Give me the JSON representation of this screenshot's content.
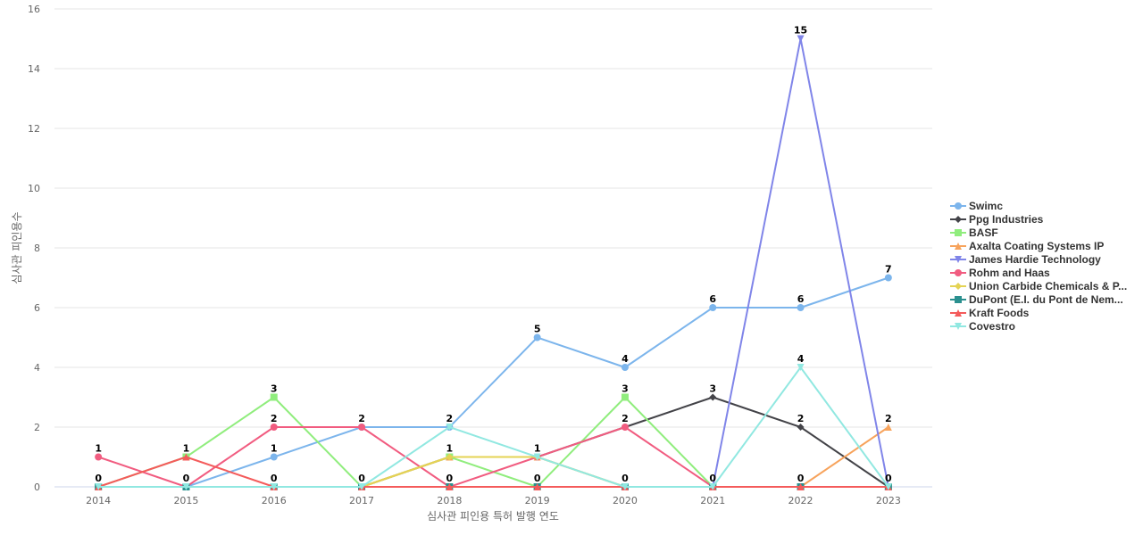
{
  "chart_data": {
    "type": "line",
    "xlabel": "심사관 피인용 특허 발행 연도",
    "ylabel": "심사관 피인용수",
    "categories": [
      "2014",
      "2015",
      "2016",
      "2017",
      "2018",
      "2019",
      "2020",
      "2021",
      "2022",
      "2023"
    ],
    "ylim": [
      0,
      16
    ],
    "yticks": [
      "0",
      "2",
      "4",
      "6",
      "8",
      "10",
      "12",
      "14",
      "16"
    ],
    "grid": true,
    "legend_position": "right",
    "series": [
      {
        "name": "Swimc",
        "color": "#7cb5ec",
        "marker": "circle",
        "values": [
          0,
          0,
          1,
          2,
          2,
          5,
          4,
          6,
          6,
          7
        ]
      },
      {
        "name": "Ppg Industries",
        "color": "#434348",
        "marker": "diamond",
        "values": [
          0,
          0,
          0,
          0,
          1,
          1,
          2,
          3,
          2,
          0
        ]
      },
      {
        "name": "BASF",
        "color": "#90ed7d",
        "marker": "square",
        "values": [
          0,
          1,
          3,
          0,
          1,
          0,
          3,
          0,
          0,
          0
        ]
      },
      {
        "name": "Axalta Coating Systems IP",
        "color": "#f7a35c",
        "marker": "triangle",
        "values": [
          0,
          0,
          0,
          0,
          1,
          1,
          0,
          0,
          0,
          2
        ]
      },
      {
        "name": "James Hardie Technology",
        "color": "#8085e9",
        "marker": "triangle-down",
        "values": [
          0,
          0,
          0,
          0,
          0,
          0,
          0,
          0,
          15,
          0
        ]
      },
      {
        "name": "Rohm and Haas",
        "color": "#f15c80",
        "marker": "circle",
        "values": [
          1,
          0,
          2,
          2,
          0,
          1,
          2,
          0,
          0,
          0
        ]
      },
      {
        "name": "Union Carbide Chemicals & P...",
        "color": "#e4d354",
        "marker": "diamond",
        "values": [
          0,
          0,
          0,
          0,
          1,
          1,
          0,
          0,
          0,
          0
        ]
      },
      {
        "name": "DuPont (E.I. du Pont de Nem...",
        "color": "#2b908f",
        "marker": "square",
        "values": [
          0,
          0,
          0,
          0,
          0,
          0,
          0,
          0,
          0,
          0
        ]
      },
      {
        "name": "Kraft Foods",
        "color": "#f45b5b",
        "marker": "triangle",
        "values": [
          0,
          1,
          0,
          0,
          0,
          0,
          0,
          0,
          0,
          0
        ]
      },
      {
        "name": "Covestro",
        "color": "#91e8e1",
        "marker": "triangle-down",
        "values": [
          0,
          0,
          0,
          0,
          2,
          1,
          0,
          0,
          4,
          0
        ]
      }
    ],
    "data_labels": [
      {
        "x": "2014",
        "values": [
          "1",
          "0"
        ]
      },
      {
        "x": "2015",
        "values": [
          "1",
          "0"
        ]
      },
      {
        "x": "2016",
        "values": [
          "3",
          "2",
          "1",
          "0"
        ]
      },
      {
        "x": "2017",
        "values": [
          "2",
          "0"
        ]
      },
      {
        "x": "2018",
        "values": [
          "2",
          "1",
          "0"
        ]
      },
      {
        "x": "2019",
        "values": [
          "5",
          "1",
          "0"
        ]
      },
      {
        "x": "2020",
        "values": [
          "4",
          "3",
          "2",
          "0"
        ]
      },
      {
        "x": "2021",
        "values": [
          "6",
          "3",
          "0"
        ]
      },
      {
        "x": "2022",
        "values": [
          "15",
          "6",
          "4",
          "2",
          "0"
        ]
      },
      {
        "x": "2023",
        "values": [
          "7",
          "2",
          "0"
        ]
      }
    ]
  }
}
